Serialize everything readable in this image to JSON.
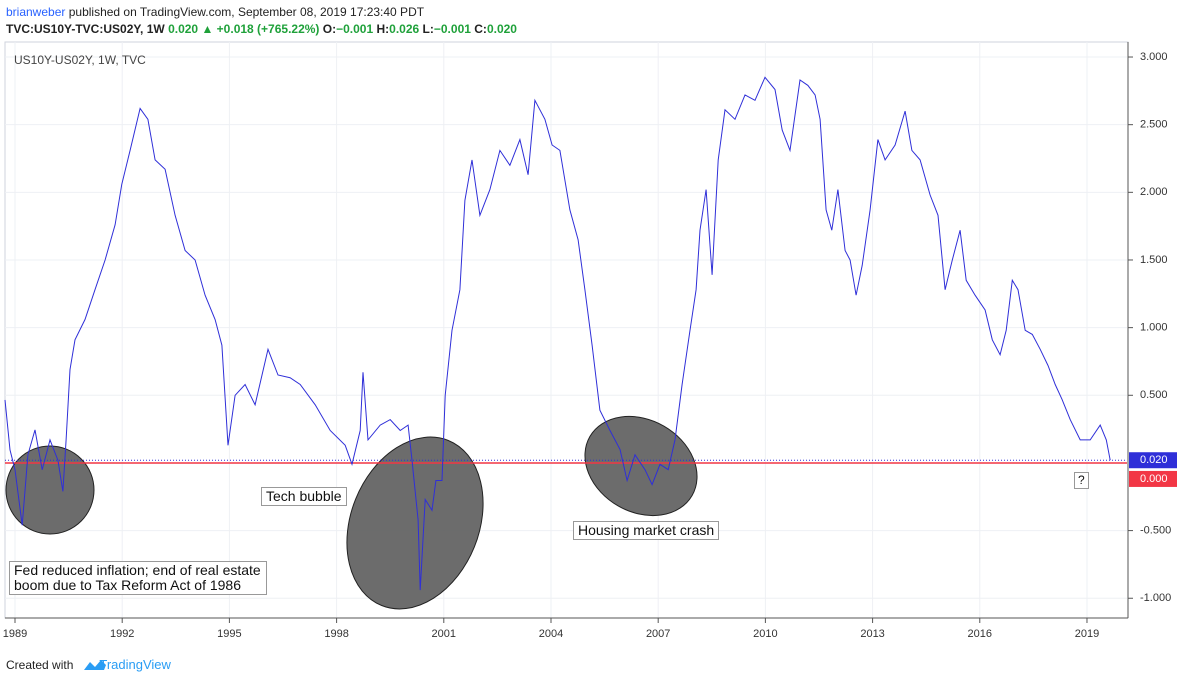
{
  "header": {
    "author": "brianweber",
    "published": "published on TradingView.com, September 08, 2019 17:23:40 PDT",
    "symbol": "TVC:US10Y-TVC:US02Y, 1W",
    "last": "0.020",
    "change": "+0.018 (+765.22%)",
    "ohlc": [
      {
        "label": "O:",
        "value": "−0.001"
      },
      {
        "label": "H:",
        "value": "0.026"
      },
      {
        "label": "L:",
        "value": "−0.001"
      },
      {
        "label": "C:",
        "value": "0.020"
      }
    ]
  },
  "footer": {
    "text": "Created with",
    "brand": "TradingView"
  },
  "chart_data": {
    "type": "line",
    "series": [
      {
        "name": "US10Y-US02Y, 1W, TVC",
        "color": "#2f2fd8",
        "values": [
          0.466,
          0.096,
          -0.05,
          -0.46,
          0.06,
          0.244,
          -0.05,
          0.17,
          0.02,
          -0.21,
          0.17,
          0.69,
          0.91,
          1.06,
          1.28,
          1.5,
          1.76,
          2.06,
          2.31,
          2.62,
          2.54,
          2.24,
          2.17,
          1.83,
          1.57,
          1.5,
          1.24,
          1.06,
          0.87,
          0.13,
          0.5,
          0.58,
          0.43,
          0.84,
          0.65,
          0.63,
          0.58,
          0.43,
          0.24,
          0.13,
          -0.01,
          0.24,
          0.67,
          0.17,
          0.28,
          0.32,
          0.24,
          0.28,
          0.02,
          -0.42,
          -0.94,
          -0.27,
          -0.35,
          -0.13,
          -0.13,
          0.5,
          0.98,
          1.28,
          1.94,
          2.24,
          1.83,
          2.02,
          2.31,
          2.2,
          2.39,
          2.13,
          2.68,
          2.54,
          2.35,
          2.31,
          1.87,
          1.65,
          1.28,
          0.87,
          0.39,
          0.24,
          0.1,
          -0.13,
          0.06,
          -0.05,
          -0.16,
          -0.01,
          -0.05,
          0.17,
          0.58,
          0.98,
          1.28,
          1.72,
          2.02,
          1.39,
          2.24,
          2.61,
          2.54,
          2.72,
          2.68,
          2.85,
          2.76,
          2.46,
          2.31,
          2.57,
          2.83,
          2.79,
          2.72,
          2.54,
          1.87,
          1.72,
          2.02,
          1.57,
          1.5,
          1.24,
          1.46,
          1.87,
          2.39,
          2.24,
          2.35,
          2.6,
          2.31,
          2.24,
          1.98,
          1.83,
          1.28,
          1.5,
          1.72,
          1.35,
          1.24,
          1.13,
          0.91,
          0.8,
          0.98,
          1.35,
          1.28,
          0.98,
          0.95,
          0.84,
          0.72,
          0.58,
          0.47,
          0.32,
          0.17,
          0.17,
          0.28,
          0.17,
          0.02
        ]
      }
    ],
    "x": [
      1988.72,
      1988.86,
      1989.0,
      1989.2,
      1989.36,
      1989.56,
      1989.76,
      1989.98,
      1990.2,
      1990.34,
      1990.43,
      1990.54,
      1990.68,
      1990.96,
      1991.24,
      1991.52,
      1991.8,
      1991.99,
      1992.22,
      1992.5,
      1992.72,
      1992.92,
      1993.2,
      1993.48,
      1993.76,
      1994.04,
      1994.32,
      1994.6,
      1994.79,
      1994.96,
      1995.16,
      1995.44,
      1995.72,
      1996.08,
      1996.36,
      1996.7,
      1996.98,
      1997.4,
      1997.82,
      1998.24,
      1998.43,
      1998.66,
      1998.74,
      1998.88,
      1999.22,
      1999.5,
      1999.78,
      2000.0,
      2000.11,
      2000.28,
      2000.34,
      2000.48,
      2000.67,
      2000.78,
      2000.95,
      2001.04,
      2001.23,
      2001.45,
      2001.59,
      2001.79,
      2002.01,
      2002.29,
      2002.57,
      2002.85,
      2003.13,
      2003.36,
      2003.55,
      2003.83,
      2004.03,
      2004.25,
      2004.53,
      2004.76,
      2004.95,
      2005.15,
      2005.37,
      2005.65,
      2005.93,
      2006.13,
      2006.35,
      2006.63,
      2006.83,
      2007.05,
      2007.28,
      2007.47,
      2007.67,
      2007.89,
      2008.06,
      2008.17,
      2008.34,
      2008.51,
      2008.68,
      2008.87,
      2009.15,
      2009.43,
      2009.71,
      2009.99,
      2010.27,
      2010.47,
      2010.69,
      2010.83,
      2010.97,
      2011.19,
      2011.39,
      2011.53,
      2011.7,
      2011.86,
      2012.03,
      2012.23,
      2012.37,
      2012.54,
      2012.71,
      2012.93,
      2013.15,
      2013.35,
      2013.63,
      2013.91,
      2014.1,
      2014.33,
      2014.61,
      2014.83,
      2015.03,
      2015.23,
      2015.45,
      2015.62,
      2015.87,
      2016.15,
      2016.35,
      2016.57,
      2016.74,
      2016.91,
      2017.07,
      2017.27,
      2017.47,
      2017.69,
      2017.91,
      2018.11,
      2018.3,
      2018.53,
      2018.81,
      2019.09,
      2019.37,
      2019.54,
      2019.65
    ],
    "xlim": [
      1988.72,
      2020.12
    ],
    "xticks": [
      1989,
      1992,
      1995,
      1998,
      2001,
      2004,
      2007,
      2010,
      2013,
      2016,
      2019
    ],
    "ylim": [
      -1.146,
      3.111
    ],
    "yticks": [
      {
        "value": 3,
        "label": "3.000"
      },
      {
        "value": 2.5,
        "label": "2.500"
      },
      {
        "value": 2,
        "label": "2.000"
      },
      {
        "value": 1.5,
        "label": "1.500"
      },
      {
        "value": 1,
        "label": "1.000"
      },
      {
        "value": 0.5,
        "label": "0.500"
      },
      {
        "value": -0.5,
        "label": "-0.500"
      },
      {
        "value": -1,
        "label": "-1.000"
      }
    ],
    "grid": true,
    "last_value": {
      "value": 0.02,
      "label": "0.020",
      "color": "#2f2fd8"
    },
    "reference_line": {
      "value": 0,
      "label": "0.000",
      "color": "#f23645"
    },
    "annotations": [
      "Tech bubble",
      "Housing market crash",
      "?",
      "Fed reduced inflation; end of real estate boom due to Tax Reform Act of 1986"
    ]
  }
}
